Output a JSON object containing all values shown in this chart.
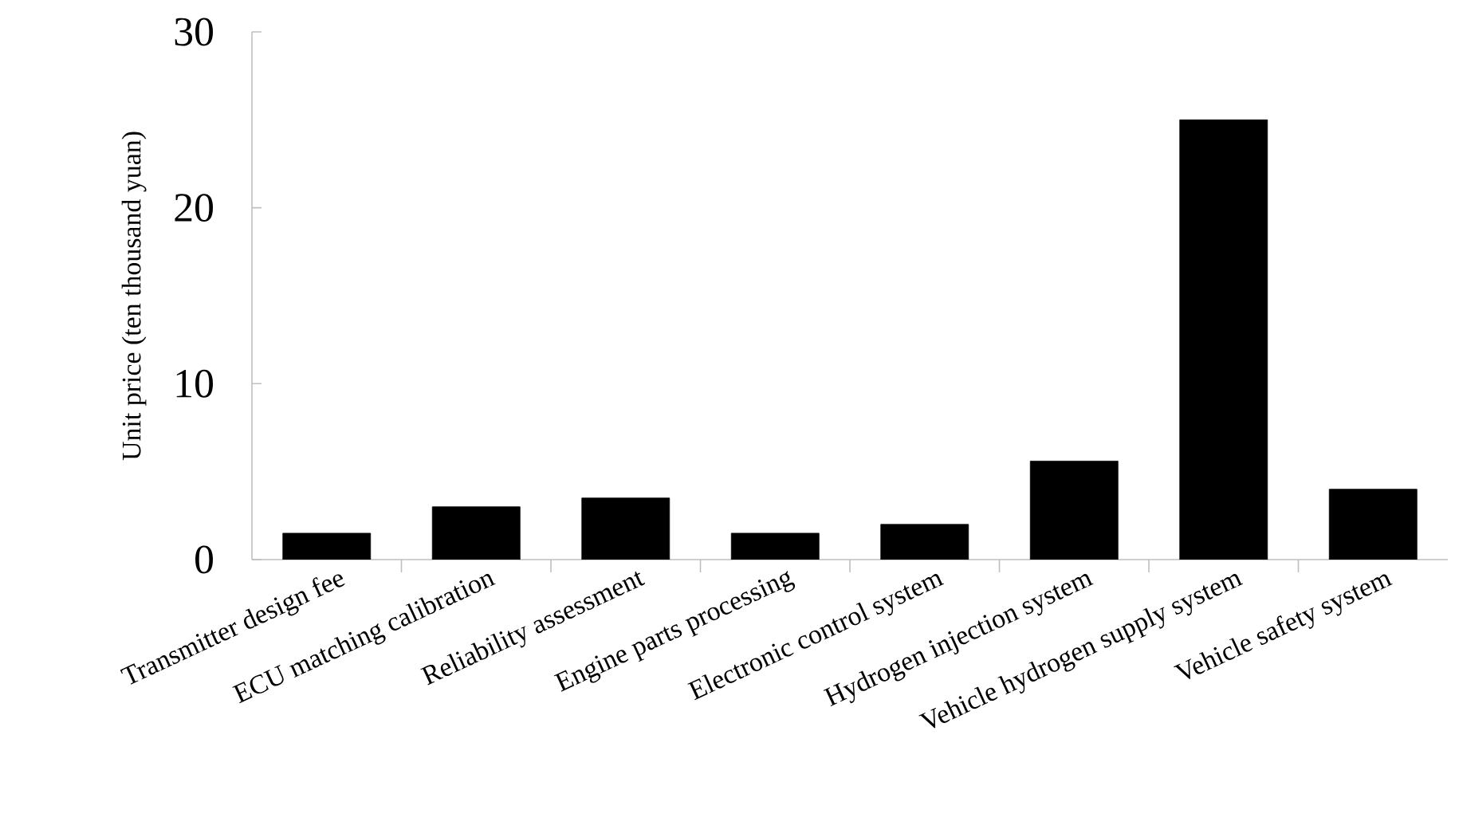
{
  "chart_data": {
    "type": "bar",
    "ylabel": "Unit price (ten thousand yuan)",
    "categories": [
      "Transmitter design fee",
      "ECU matching calibration",
      "Reliability assessment",
      "Engine parts processing",
      "Electronic control system",
      "Hydrogen injection system",
      "Vehicle hydrogen supply system",
      "Vehicle safety system"
    ],
    "values": [
      1.5,
      3,
      3.5,
      1.5,
      2,
      5.6,
      25,
      4
    ],
    "color": "#000000",
    "ylim": [
      0,
      30
    ],
    "yticks": [
      0,
      10,
      20,
      30
    ],
    "grid": false
  }
}
